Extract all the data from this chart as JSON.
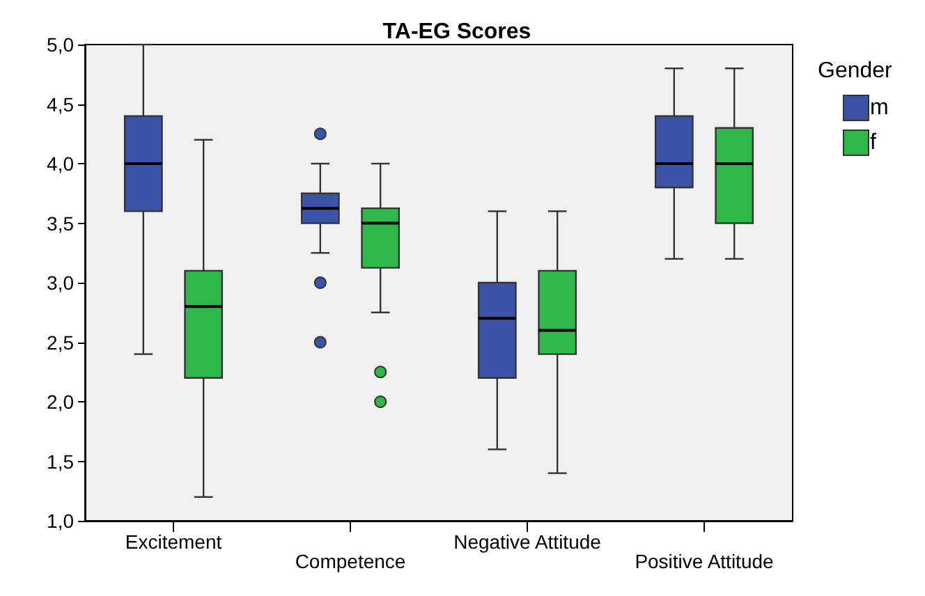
{
  "chart_data": {
    "type": "box",
    "title": "TA-EG Scores",
    "legend_title": "Gender",
    "categories": [
      "Excitement",
      "Competence",
      "Negative Attitude",
      "Positive Attitude"
    ],
    "ylim": [
      1,
      5
    ],
    "yticks": [
      {
        "value": 1,
        "label": "1,0"
      },
      {
        "value": 1.5,
        "label": "1,5"
      },
      {
        "value": 2,
        "label": "2,0"
      },
      {
        "value": 2.5,
        "label": "2,5"
      },
      {
        "value": 3,
        "label": "3,0"
      },
      {
        "value": 3.5,
        "label": "3,5"
      },
      {
        "value": 4,
        "label": "4,0"
      },
      {
        "value": 4.5,
        "label": "4,5"
      },
      {
        "value": 5,
        "label": "5,0"
      }
    ],
    "grid": false,
    "legend": "top right",
    "marker": "circle",
    "series": [
      {
        "name": "m",
        "color": "#3c54a8",
        "boxes": [
          {
            "low": 2.4,
            "q1": 3.6,
            "median": 4.0,
            "q3": 4.4,
            "high": 5.0
          },
          {
            "low": 3.25,
            "q1": 3.5,
            "median": 3.625,
            "q3": 3.75,
            "high": 4.0,
            "outliers": [
              4.25,
              3.0,
              2.5
            ]
          },
          {
            "low": 1.6,
            "q1": 2.2,
            "median": 2.7,
            "q3": 3.0,
            "high": 3.6
          },
          {
            "low": 3.2,
            "q1": 3.8,
            "median": 4.0,
            "q3": 4.4,
            "high": 4.8
          }
        ]
      },
      {
        "name": "f",
        "color": "#2eb84a",
        "boxes": [
          {
            "low": 1.2,
            "q1": 2.2,
            "median": 2.8,
            "q3": 3.1,
            "high": 4.2
          },
          {
            "low": 2.75,
            "q1": 3.125,
            "median": 3.5,
            "q3": 3.625,
            "high": 4.0,
            "outliers": [
              2.25,
              2.0
            ]
          },
          {
            "low": 1.4,
            "q1": 2.4,
            "median": 2.6,
            "q3": 3.1,
            "high": 3.6
          },
          {
            "low": 3.2,
            "q1": 3.5,
            "median": 4.0,
            "q3": 4.3,
            "high": 4.8
          }
        ]
      }
    ]
  }
}
